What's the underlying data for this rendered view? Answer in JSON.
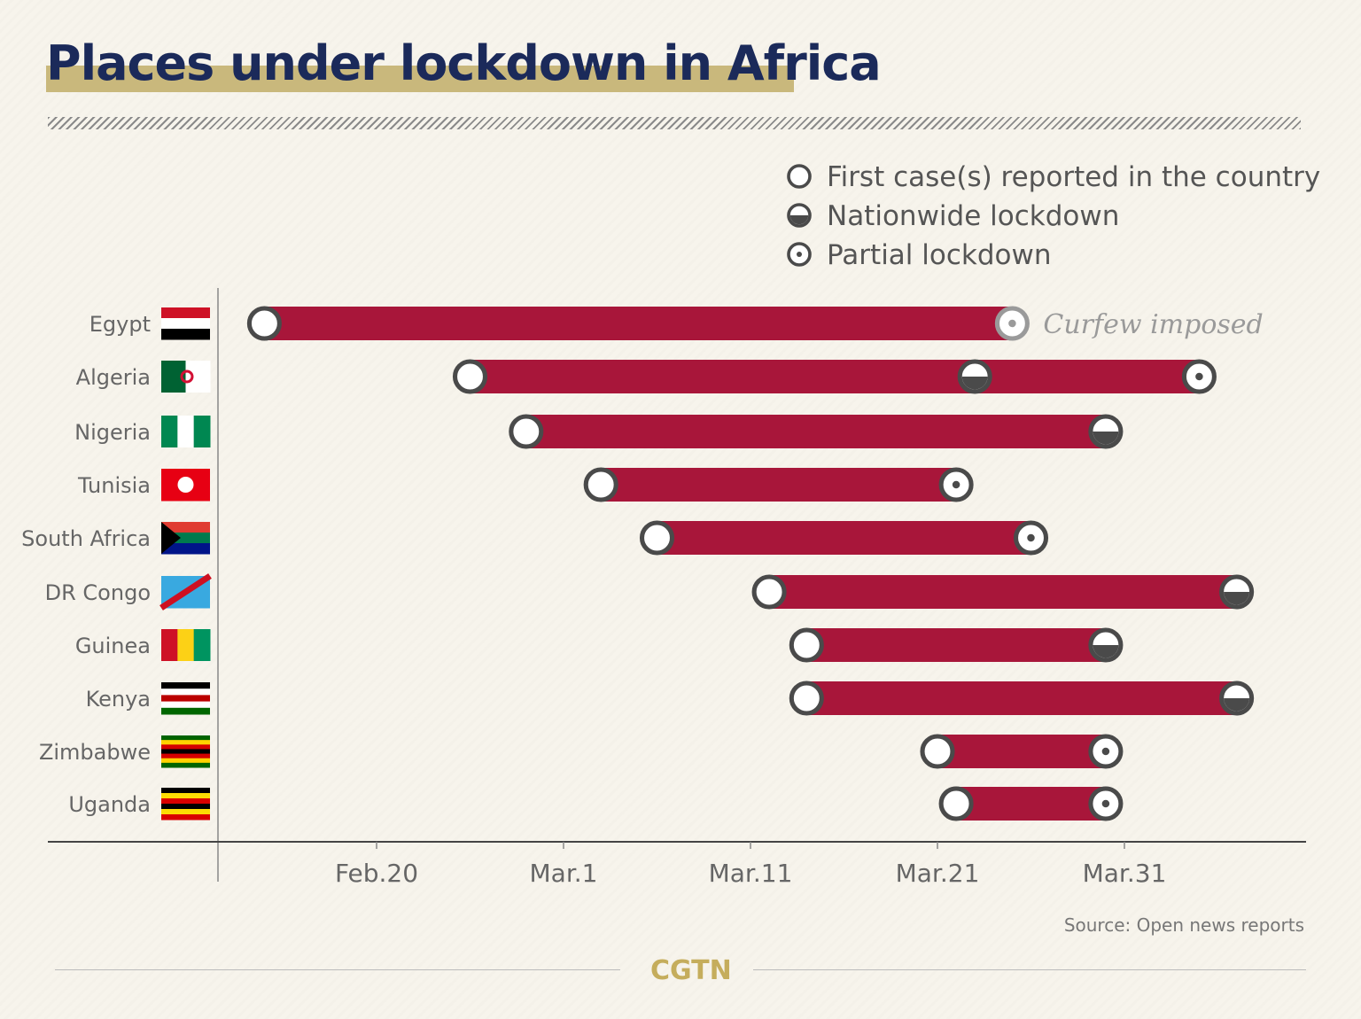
{
  "title": "Places under lockdown in Africa",
  "source": "Source: Open news reports",
  "logo": "CGTN",
  "colors": {
    "bar": "#a8163a",
    "marker_stroke": "#4a4a4a",
    "title": "#1b2a5a",
    "highlight": "#c9b87c",
    "background": "#f7f4ec"
  },
  "chart_data": {
    "type": "timeline-bar",
    "legend": [
      {
        "marker": "first-case",
        "label": "First case(s) reported in the country"
      },
      {
        "marker": "nationwide",
        "label": "Nationwide lockdown"
      },
      {
        "marker": "partial",
        "label": "Partial lockdown"
      }
    ],
    "legend_position": "top-right",
    "x_ticks": [
      "Feb.20",
      "Mar.1",
      "Mar.11",
      "Mar.21",
      "Mar.31"
    ],
    "xlim": [
      "Feb.10",
      "Apr.9"
    ],
    "annotation": "Curfew imposed",
    "rows": [
      {
        "country": "Egypt",
        "first_case": "Feb.14",
        "events": [
          {
            "type": "curfew",
            "date": "Mar.25"
          }
        ]
      },
      {
        "country": "Algeria",
        "first_case": "Feb.25",
        "events": [
          {
            "type": "nationwide",
            "date": "Mar.23"
          },
          {
            "type": "partial",
            "date": "Apr.4"
          }
        ]
      },
      {
        "country": "Nigeria",
        "first_case": "Feb.28",
        "events": [
          {
            "type": "nationwide",
            "date": "Mar.30"
          }
        ]
      },
      {
        "country": "Tunisia",
        "first_case": "Mar.3",
        "events": [
          {
            "type": "partial",
            "date": "Mar.22"
          }
        ]
      },
      {
        "country": "South Africa",
        "first_case": "Mar.6",
        "events": [
          {
            "type": "partial",
            "date": "Mar.26"
          }
        ]
      },
      {
        "country": "DR Congo",
        "first_case": "Mar.12",
        "events": [
          {
            "type": "nationwide",
            "date": "Apr.6"
          }
        ]
      },
      {
        "country": "Guinea",
        "first_case": "Mar.14",
        "events": [
          {
            "type": "nationwide",
            "date": "Mar.30"
          }
        ]
      },
      {
        "country": "Kenya",
        "first_case": "Mar.14",
        "events": [
          {
            "type": "nationwide",
            "date": "Apr.6"
          }
        ]
      },
      {
        "country": "Zimbabwe",
        "first_case": "Mar.21",
        "events": [
          {
            "type": "partial",
            "date": "Mar.30"
          }
        ]
      },
      {
        "country": "Uganda",
        "first_case": "Mar.22",
        "events": [
          {
            "type": "partial",
            "date": "Mar.30"
          }
        ]
      }
    ]
  }
}
